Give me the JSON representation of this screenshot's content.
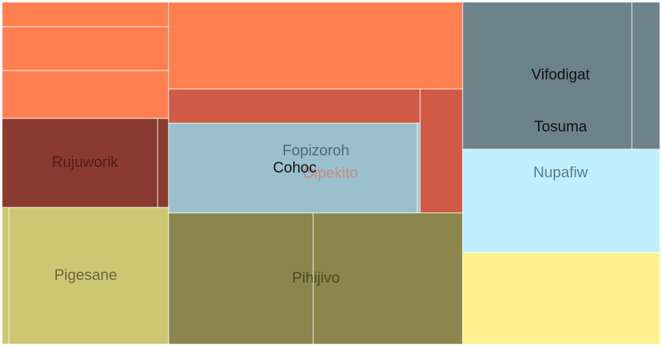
{
  "chart_data": {
    "type": "treemap",
    "colors": {
      "orange": "#FF7F50",
      "red": "#D05A45",
      "light_blue_gray": "#9AC0CD",
      "dark_red": "#8B3A2F",
      "khaki": "#CDC673",
      "olive": "#8B864E",
      "slate_gray": "#6C838B",
      "light_blue": "#BFEFFF",
      "yellow": "#FFF28C"
    },
    "groups": [
      {
        "name": "",
        "color": "orange",
        "leaves": [
          {
            "name": "",
            "value": 1
          },
          {
            "name": "",
            "value": 1.3
          },
          {
            "name": "",
            "value": 1.6
          },
          {
            "name": "",
            "value": 5.6
          }
        ]
      },
      {
        "name": "Oipekito",
        "color": "red",
        "leaves": [
          {
            "name": "",
            "value": 1.7
          },
          {
            "name": "",
            "value": 1.9
          }
        ]
      },
      {
        "name": "Fopizoroh",
        "color": "light_blue_gray",
        "leaves": [
          {
            "name": "Cohoc",
            "value": 4.6
          },
          {
            "name": "",
            "value": 0.06
          }
        ]
      },
      {
        "name": "Rujuworik",
        "color": "dark_red",
        "leaves": [
          {
            "name": "",
            "value": 3.0
          },
          {
            "name": "",
            "value": 0.22
          }
        ]
      },
      {
        "name": "Pigesane",
        "color": "khaki",
        "leaves": [
          {
            "name": "",
            "value": 0.2
          },
          {
            "name": "",
            "value": 4.9
          }
        ]
      },
      {
        "name": "Pihijivo",
        "color": "olive",
        "leaves": [
          {
            "name": "",
            "value": 4.1
          },
          {
            "name": "",
            "value": 4.2
          }
        ]
      },
      {
        "name": "Tosuma",
        "color": "slate_gray",
        "leaves": [
          {
            "name": "Vifodigat",
            "value": 5.4
          },
          {
            "name": "",
            "value": 1.0
          }
        ]
      },
      {
        "name": "Nupafiw",
        "color": "light_blue",
        "leaves": [
          {
            "name": "",
            "value": 4.1
          }
        ]
      },
      {
        "name": "",
        "color": "yellow",
        "leaves": [
          {
            "name": "",
            "value": 3.8
          }
        ]
      }
    ]
  }
}
